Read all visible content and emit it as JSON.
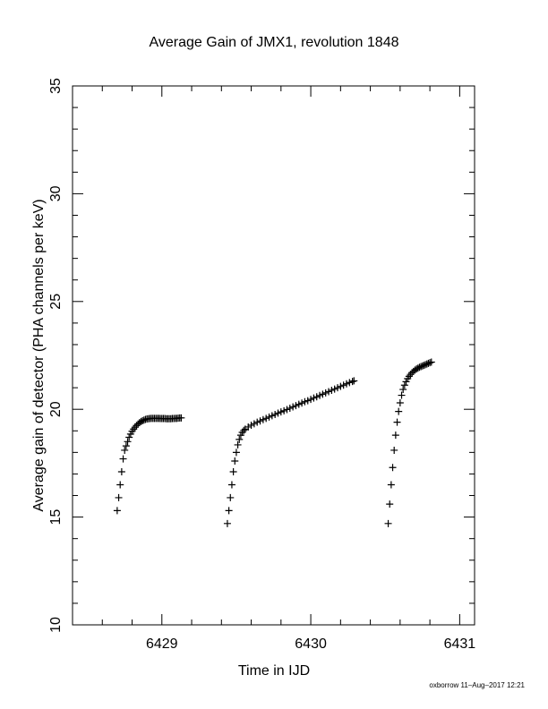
{
  "chart_data": {
    "type": "scatter",
    "title": "Average Gain of JMX1, revolution 1848",
    "xlabel": "Time in IJD",
    "ylabel": "Average gain of detector (PHA channels per keV)",
    "xlim": [
      6428.4,
      6431.1
    ],
    "ylim": [
      10,
      35
    ],
    "xticks": [
      6429,
      6430,
      6431
    ],
    "yticks": [
      10,
      15,
      20,
      25,
      30,
      35
    ],
    "grid": false,
    "marker": "plus",
    "segments": [
      {
        "x": [
          6428.7,
          6428.71,
          6428.72,
          6428.73,
          6428.74,
          6428.75,
          6428.76,
          6428.77,
          6428.78,
          6428.79,
          6428.8,
          6428.81,
          6428.82,
          6428.83,
          6428.84,
          6428.85,
          6428.86,
          6428.87,
          6428.88,
          6428.89,
          6428.9,
          6428.91,
          6428.92,
          6428.93,
          6428.94,
          6428.95,
          6428.96,
          6428.97,
          6428.98,
          6428.99,
          6429.0,
          6429.01,
          6429.02,
          6429.03,
          6429.04,
          6429.05,
          6429.06,
          6429.07,
          6429.08,
          6429.09,
          6429.1,
          6429.11,
          6429.12,
          6429.13
        ],
        "y": [
          15.3,
          15.9,
          16.5,
          17.1,
          17.7,
          18.1,
          18.3,
          18.5,
          18.7,
          18.85,
          18.98,
          19.08,
          19.17,
          19.25,
          19.32,
          19.38,
          19.43,
          19.47,
          19.5,
          19.53,
          19.55,
          19.56,
          19.57,
          19.58,
          19.58,
          19.58,
          19.58,
          19.58,
          19.58,
          19.57,
          19.57,
          19.57,
          19.57,
          19.56,
          19.56,
          19.56,
          19.56,
          19.57,
          19.57,
          19.58,
          19.58,
          19.59,
          19.6,
          19.6
        ]
      },
      {
        "x": [
          6429.44,
          6429.45,
          6429.46,
          6429.47,
          6429.48,
          6429.49,
          6429.5,
          6429.51,
          6429.52,
          6429.53,
          6429.54,
          6429.55,
          6429.56,
          6429.58,
          6429.6,
          6429.62,
          6429.64,
          6429.66,
          6429.68,
          6429.7,
          6429.72,
          6429.74,
          6429.76,
          6429.78,
          6429.8,
          6429.82,
          6429.84,
          6429.86,
          6429.88,
          6429.9,
          6429.92,
          6429.94,
          6429.96,
          6429.98,
          6430.0,
          6430.02,
          6430.04,
          6430.06,
          6430.08,
          6430.1,
          6430.12,
          6430.14,
          6430.16,
          6430.18,
          6430.2,
          6430.22,
          6430.24,
          6430.26,
          6430.28,
          6430.29
        ],
        "y": [
          14.7,
          15.3,
          15.9,
          16.5,
          17.1,
          17.6,
          18.0,
          18.35,
          18.6,
          18.8,
          18.93,
          19.02,
          19.08,
          19.18,
          19.26,
          19.33,
          19.4,
          19.46,
          19.52,
          19.58,
          19.64,
          19.7,
          19.76,
          19.82,
          19.88,
          19.93,
          19.99,
          20.05,
          20.11,
          20.17,
          20.23,
          20.29,
          20.35,
          20.4,
          20.46,
          20.52,
          20.58,
          20.64,
          20.7,
          20.76,
          20.82,
          20.88,
          20.94,
          21.0,
          21.06,
          21.12,
          21.18,
          21.24,
          21.29,
          21.32
        ]
      },
      {
        "x": [
          6430.52,
          6430.53,
          6430.54,
          6430.55,
          6430.56,
          6430.57,
          6430.58,
          6430.59,
          6430.6,
          6430.61,
          6430.62,
          6430.63,
          6430.64,
          6430.65,
          6430.66,
          6430.67,
          6430.68,
          6430.69,
          6430.7,
          6430.71,
          6430.72,
          6430.73,
          6430.74,
          6430.75,
          6430.76,
          6430.77,
          6430.78,
          6430.79,
          6430.8,
          6430.81
        ],
        "y": [
          14.7,
          15.6,
          16.5,
          17.3,
          18.1,
          18.8,
          19.4,
          19.9,
          20.3,
          20.65,
          20.92,
          21.12,
          21.28,
          21.42,
          21.53,
          21.62,
          21.7,
          21.76,
          21.82,
          21.87,
          21.91,
          21.95,
          21.98,
          22.01,
          22.04,
          22.07,
          22.1,
          22.13,
          22.16,
          22.19
        ]
      }
    ]
  },
  "footer": {
    "stamp": "oxborrow 11–Aug–2017 12:21"
  }
}
